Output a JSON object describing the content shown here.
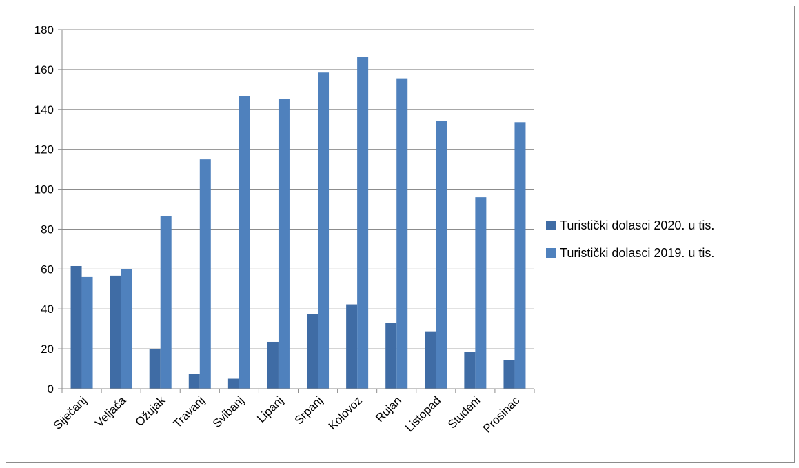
{
  "chart_data": {
    "type": "bar",
    "title": "",
    "xlabel": "",
    "ylabel": "",
    "ylim": [
      0,
      180
    ],
    "yticks": [
      0,
      20,
      40,
      60,
      80,
      100,
      120,
      140,
      160,
      180
    ],
    "grid": true,
    "legend_position": "right",
    "categories": [
      "Siječanj",
      "Veljača",
      "Ožujak",
      "Travanj",
      "Svibanj",
      "Lipanj",
      "Srpanj",
      "Kolovoz",
      "Rujan",
      "Listopad",
      "Studeni",
      "Prosinac"
    ],
    "series": [
      {
        "name": "Turistički dolasci 2020. u tis.",
        "color": "#3f6ca5",
        "values": [
          61.5,
          56.7,
          20,
          7.5,
          5,
          23.5,
          37.5,
          42.3,
          33,
          28.8,
          18.5,
          14.2
        ]
      },
      {
        "name": "Turistički dolasci 2019. u tis.",
        "color": "#4f81bd",
        "values": [
          56,
          60,
          86.6,
          115,
          146.7,
          145.3,
          158.5,
          166.3,
          155.6,
          134.3,
          96,
          133.6
        ]
      }
    ]
  }
}
